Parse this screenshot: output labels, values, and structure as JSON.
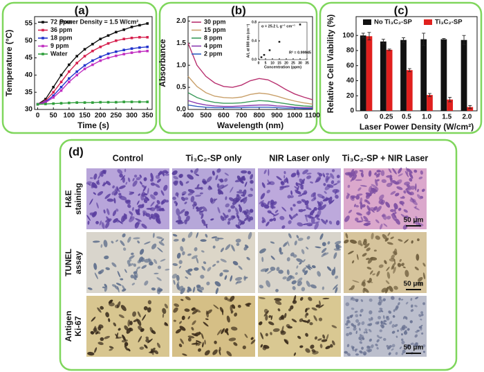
{
  "chart_data": [
    {
      "type": "line",
      "title": "(a)",
      "x_label": "Time (s)",
      "y_label": "Temperature (°C)",
      "x": [
        0,
        25,
        50,
        75,
        100,
        125,
        150,
        175,
        200,
        225,
        250,
        275,
        300,
        325,
        350
      ],
      "xlim": [
        -10,
        365
      ],
      "xticks": [
        0,
        50,
        100,
        150,
        200,
        250,
        300,
        350
      ],
      "ylim": [
        30,
        57
      ],
      "yticks": [
        30,
        35,
        40,
        45,
        50,
        55
      ],
      "legend": "upper left",
      "markers": true,
      "annotations": [
        {
          "text": "Power Density = 1.5 W/cm²",
          "color": "#e9a0a0"
        }
      ],
      "series": [
        {
          "name": "72 ppm",
          "color": "#111111",
          "values": [
            31.5,
            33,
            36.5,
            40,
            43,
            45.5,
            47.5,
            49,
            50.5,
            51.5,
            52.5,
            53.2,
            54,
            54.5,
            55
          ]
        },
        {
          "name": "36 ppm",
          "color": "#d6204e",
          "values": [
            31.5,
            32.5,
            35,
            38,
            41,
            43.5,
            45.5,
            47,
            48.2,
            49.2,
            50,
            50.5,
            50.8,
            51,
            51
          ]
        },
        {
          "name": "18 ppm",
          "color": "#2233cc",
          "values": [
            31.5,
            32.2,
            34,
            36.5,
            39,
            41,
            42.8,
            44.2,
            45.3,
            46.2,
            46.8,
            47.3,
            47.7,
            48,
            48.2
          ]
        },
        {
          "name": "9 ppm",
          "color": "#c12fc1",
          "values": [
            31.5,
            32,
            33.5,
            35.5,
            38,
            40,
            41.8,
            43,
            44.2,
            45,
            45.6,
            46.1,
            46.5,
            46.8,
            47
          ]
        },
        {
          "name": "Water",
          "color": "#2e9e3a",
          "values": [
            31.5,
            31.6,
            31.7,
            31.8,
            31.9,
            32,
            32,
            32,
            32.1,
            32.1,
            32.1,
            32.2,
            32.2,
            32.2,
            32.2
          ]
        }
      ]
    },
    {
      "type": "line",
      "title": "(b)",
      "x_label": "Wavelength (nm)",
      "y_label": "Absorbance",
      "x": [
        400,
        450,
        500,
        550,
        600,
        650,
        700,
        750,
        800,
        850,
        900,
        950,
        1000,
        1050,
        1100
      ],
      "xlim": [
        400,
        1100
      ],
      "xticks": [
        400,
        500,
        600,
        700,
        800,
        900,
        1000,
        1100
      ],
      "ylim": [
        0,
        2.1
      ],
      "yticks": [
        {
          "value": 0,
          "label": "0.0"
        },
        0.5,
        {
          "value": 1,
          "label": "1.0"
        },
        1.5,
        {
          "value": 2,
          "label": "2.0"
        }
      ],
      "legend": "upper left",
      "markers": false,
      "series": [
        {
          "name": "30 ppm",
          "color": "#b8306f",
          "values": [
            1.5,
            1.0,
            0.75,
            0.6,
            0.52,
            0.5,
            0.55,
            0.65,
            0.7,
            0.67,
            0.57,
            0.45,
            0.35,
            0.28,
            0.22
          ]
        },
        {
          "name": "15 ppm",
          "color": "#c9a06a",
          "values": [
            0.75,
            0.52,
            0.38,
            0.3,
            0.27,
            0.26,
            0.28,
            0.34,
            0.37,
            0.35,
            0.3,
            0.24,
            0.19,
            0.15,
            0.12
          ]
        },
        {
          "name": "8 ppm",
          "color": "#3a9a5a",
          "values": [
            0.38,
            0.27,
            0.2,
            0.16,
            0.14,
            0.14,
            0.15,
            0.18,
            0.2,
            0.19,
            0.16,
            0.13,
            0.1,
            0.08,
            0.07
          ]
        },
        {
          "name": "4 ppm",
          "color": "#8a3ab0",
          "values": [
            0.2,
            0.14,
            0.1,
            0.08,
            0.07,
            0.07,
            0.08,
            0.09,
            0.1,
            0.1,
            0.08,
            0.07,
            0.05,
            0.04,
            0.04
          ]
        },
        {
          "name": "2 ppm",
          "color": "#2f5fc0",
          "values": [
            0.1,
            0.07,
            0.05,
            0.04,
            0.04,
            0.04,
            0.04,
            0.05,
            0.05,
            0.05,
            0.04,
            0.03,
            0.03,
            0.02,
            0.02
          ]
        }
      ]
    },
    {
      "type": "scatter",
      "x_label": "Concentration (ppm)",
      "y_label": "A/L at 808 nm (cm⁻¹)",
      "x": [
        2,
        4,
        8,
        15,
        30
      ],
      "values": [
        0.05,
        0.1,
        0.2,
        0.38,
        0.75
      ],
      "color": "#222222",
      "xlim": [
        0,
        35
      ],
      "xticks": [
        0,
        5,
        10,
        15,
        20,
        25,
        30,
        35
      ],
      "ylim": [
        0,
        0.8
      ],
      "yticks": [
        {
          "value": 0,
          "label": "0.0"
        },
        0.4,
        0.8
      ],
      "annotations": [
        {
          "text": "α = 25.2 L g⁻¹ cm⁻¹",
          "color": "#111111"
        },
        {
          "text": "R² = 0.99945",
          "color": "#111111"
        }
      ]
    },
    {
      "type": "bar",
      "title": "(c)",
      "x_label": "Laser Power Density (W/cm²)",
      "y_label": "Relative Cell Viability (%)",
      "categories": [
        "0",
        "0.25",
        "0.5",
        "1.0",
        "1.5",
        "2.0"
      ],
      "ylim": [
        0,
        125
      ],
      "yticks": [
        0,
        20,
        40,
        60,
        80,
        100
      ],
      "legend": "upper center",
      "series": [
        {
          "name": "No Ti₃C₂-SP",
          "color": "#111111",
          "values": [
            100,
            92,
            94,
            95,
            95,
            94
          ],
          "errors": [
            3,
            3,
            3,
            8,
            1,
            6
          ]
        },
        {
          "name": "Ti₃C₂-SP",
          "color": "#e0201e",
          "values": [
            99,
            81,
            54,
            21,
            15,
            5
          ],
          "errors": [
            5,
            1,
            2,
            2,
            3,
            2
          ]
        }
      ]
    }
  ],
  "panel_d": {
    "label": "(d)",
    "columns": [
      "Control",
      "Ti₃C₂-SP only",
      "NIR Laser only",
      "Ti₃C₂-SP + NIR Laser"
    ],
    "rows": [
      {
        "label": [
          "H&E",
          "staining"
        ],
        "scale_bar": "50 μm"
      },
      {
        "label": [
          "TUNEL",
          "assay"
        ],
        "scale_bar": "50 μm"
      },
      {
        "label": [
          "Antigen",
          "Ki-67"
        ],
        "scale_bar": "50 μm"
      }
    ]
  }
}
